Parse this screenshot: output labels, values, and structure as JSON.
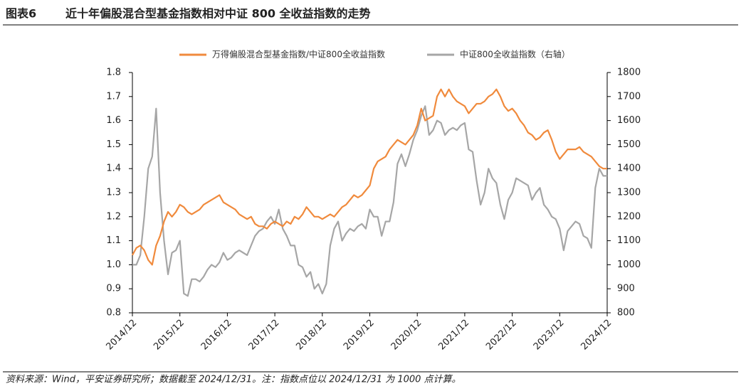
{
  "chart_data": {
    "type": "line",
    "figure_label": "图表6",
    "title": "近十年偏股混合型基金指数相对中证 800 全收益指数的走势",
    "source": "资料来源：Wind，平安证券研究所；数据截至 2024/12/31。注：指数点位以 2024/12/31 为 1000 点计算。",
    "x": [
      "2014/12",
      "2015/01",
      "2015/02",
      "2015/03",
      "2015/04",
      "2015/05",
      "2015/06",
      "2015/07",
      "2015/08",
      "2015/09",
      "2015/10",
      "2015/11",
      "2015/12",
      "2016/01",
      "2016/02",
      "2016/03",
      "2016/04",
      "2016/05",
      "2016/06",
      "2016/07",
      "2016/08",
      "2016/09",
      "2016/10",
      "2016/11",
      "2016/12",
      "2017/01",
      "2017/02",
      "2017/03",
      "2017/04",
      "2017/05",
      "2017/06",
      "2017/07",
      "2017/08",
      "2017/09",
      "2017/10",
      "2017/11",
      "2017/12",
      "2018/01",
      "2018/02",
      "2018/03",
      "2018/04",
      "2018/05",
      "2018/06",
      "2018/07",
      "2018/08",
      "2018/09",
      "2018/10",
      "2018/11",
      "2018/12",
      "2019/01",
      "2019/02",
      "2019/03",
      "2019/04",
      "2019/05",
      "2019/06",
      "2019/07",
      "2019/08",
      "2019/09",
      "2019/10",
      "2019/11",
      "2019/12",
      "2020/01",
      "2020/02",
      "2020/03",
      "2020/04",
      "2020/05",
      "2020/06",
      "2020/07",
      "2020/08",
      "2020/09",
      "2020/10",
      "2020/11",
      "2020/12",
      "2021/01",
      "2021/02",
      "2021/03",
      "2021/04",
      "2021/05",
      "2021/06",
      "2021/07",
      "2021/08",
      "2021/09",
      "2021/10",
      "2021/11",
      "2021/12",
      "2022/01",
      "2022/02",
      "2022/03",
      "2022/04",
      "2022/05",
      "2022/06",
      "2022/07",
      "2022/08",
      "2022/09",
      "2022/10",
      "2022/11",
      "2022/12",
      "2023/01",
      "2023/02",
      "2023/03",
      "2023/04",
      "2023/05",
      "2023/06",
      "2023/07",
      "2023/08",
      "2023/09",
      "2023/10",
      "2023/11",
      "2023/12",
      "2024/01",
      "2024/02",
      "2024/03",
      "2024/04",
      "2024/05",
      "2024/06",
      "2024/07",
      "2024/08",
      "2024/09",
      "2024/10",
      "2024/11",
      "2024/12"
    ],
    "xticks": [
      "2014/12",
      "2015/12",
      "2016/12",
      "2017/12",
      "2018/12",
      "2019/12",
      "2020/12",
      "2021/12",
      "2022/12",
      "2023/12",
      "2024/12"
    ],
    "ylim": [
      0.8,
      1.8
    ],
    "yticks": [
      {
        "value": 0.8,
        "label": "0.8"
      },
      0.9,
      {
        "value": 1.0,
        "label": "1.0"
      },
      1.1,
      1.2,
      1.3,
      1.4,
      1.5,
      1.6,
      1.7,
      1.8
    ],
    "y2lim": [
      800,
      1800
    ],
    "y2ticks": [
      800,
      900,
      1000,
      1100,
      1200,
      1300,
      1400,
      1500,
      1600,
      1700,
      1800
    ],
    "series": [
      {
        "name": "万得偏股混合型基金指数/中证800全收益指数",
        "color": "#f08a3c",
        "values": [
          1.04,
          1.07,
          1.08,
          1.06,
          1.02,
          1.0,
          1.08,
          1.12,
          1.18,
          1.22,
          1.2,
          1.22,
          1.25,
          1.24,
          1.22,
          1.21,
          1.22,
          1.23,
          1.25,
          1.26,
          1.27,
          1.28,
          1.29,
          1.26,
          1.25,
          1.24,
          1.23,
          1.21,
          1.2,
          1.19,
          1.2,
          1.17,
          1.16,
          1.16,
          1.15,
          1.17,
          1.18,
          1.17,
          1.16,
          1.18,
          1.17,
          1.2,
          1.19,
          1.21,
          1.24,
          1.22,
          1.2,
          1.2,
          1.19,
          1.2,
          1.21,
          1.2,
          1.22,
          1.24,
          1.25,
          1.27,
          1.29,
          1.28,
          1.29,
          1.31,
          1.33,
          1.4,
          1.43,
          1.44,
          1.45,
          1.48,
          1.5,
          1.52,
          1.51,
          1.5,
          1.52,
          1.54,
          1.58,
          1.65,
          1.6,
          1.61,
          1.62,
          1.7,
          1.73,
          1.7,
          1.73,
          1.7,
          1.68,
          1.67,
          1.66,
          1.63,
          1.65,
          1.67,
          1.67,
          1.68,
          1.7,
          1.71,
          1.73,
          1.7,
          1.66,
          1.64,
          1.65,
          1.63,
          1.6,
          1.58,
          1.55,
          1.54,
          1.52,
          1.53,
          1.55,
          1.56,
          1.52,
          1.47,
          1.44,
          1.46,
          1.48,
          1.48,
          1.48,
          1.49,
          1.47,
          1.46,
          1.45,
          1.43,
          1.41,
          1.4,
          1.4
        ]
      },
      {
        "name": "中证800全收益指数（右轴）",
        "color": "#a6a6a6",
        "axis": "y2",
        "values": [
          1000,
          1000,
          1040,
          1200,
          1400,
          1450,
          1650,
          1300,
          1100,
          960,
          1050,
          1060,
          1100,
          880,
          870,
          940,
          940,
          930,
          950,
          980,
          1000,
          990,
          1010,
          1050,
          1020,
          1030,
          1050,
          1060,
          1050,
          1040,
          1080,
          1120,
          1140,
          1150,
          1180,
          1200,
          1170,
          1230,
          1150,
          1120,
          1080,
          1080,
          1000,
          990,
          950,
          970,
          900,
          920,
          880,
          920,
          1080,
          1150,
          1180,
          1100,
          1130,
          1150,
          1140,
          1160,
          1170,
          1150,
          1230,
          1200,
          1200,
          1120,
          1180,
          1180,
          1260,
          1420,
          1460,
          1410,
          1460,
          1520,
          1560,
          1620,
          1660,
          1540,
          1560,
          1600,
          1590,
          1540,
          1560,
          1570,
          1560,
          1580,
          1590,
          1480,
          1470,
          1350,
          1250,
          1300,
          1400,
          1360,
          1340,
          1250,
          1190,
          1270,
          1300,
          1360,
          1350,
          1340,
          1330,
          1270,
          1300,
          1320,
          1250,
          1230,
          1200,
          1190,
          1150,
          1060,
          1140,
          1160,
          1180,
          1170,
          1120,
          1110,
          1070,
          1320,
          1400,
          1370,
          1370
        ]
      }
    ]
  }
}
